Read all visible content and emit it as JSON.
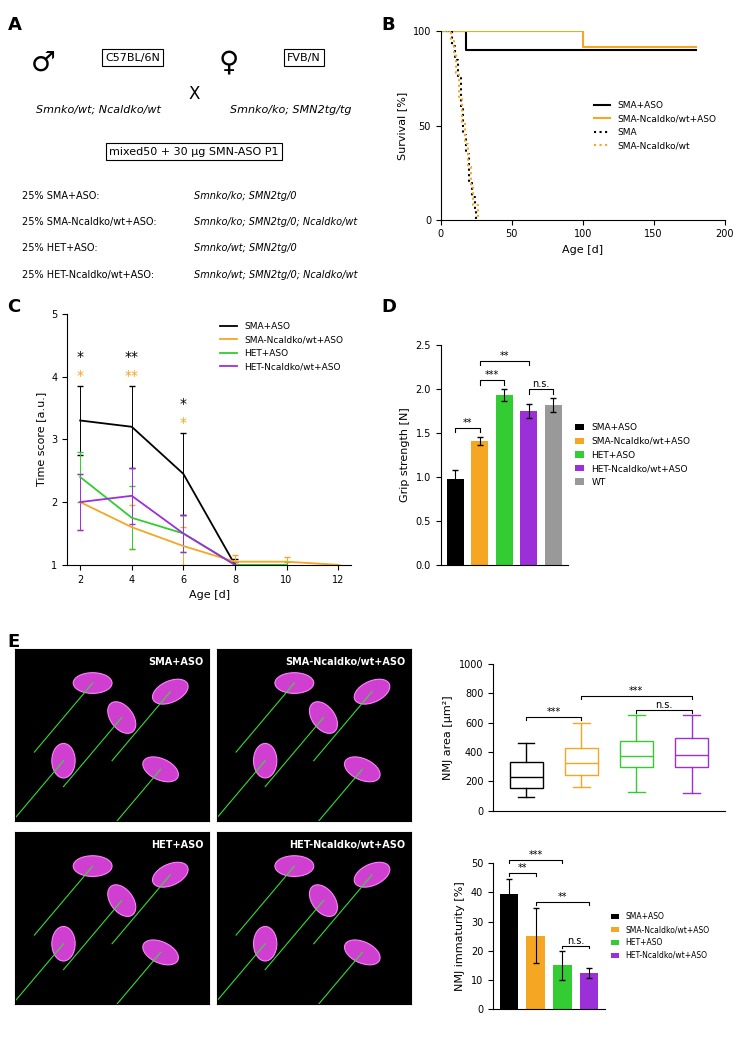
{
  "panel_labels": [
    "A",
    "B",
    "C",
    "D",
    "E"
  ],
  "diagram": {
    "male_symbol": "♂",
    "male_strain": "C57BL/6N",
    "male_genotype": "Smnko/wt; Ncaldko/wt",
    "cross": "X",
    "female_symbol": "♀",
    "female_strain": "FVB/N",
    "female_genotype": "Smnko/ko; SMN2tg/tg",
    "treatment": "mixed50 + 30 µg SMN-ASO P1",
    "offspring": [
      [
        "25% SMA+ASO:",
        "Smnko/ko; SMN2tg/0"
      ],
      [
        "25% SMA-Ncaldko/wt+ASO:",
        "Smnko/ko; SMN2tg/0; Ncaldko/wt"
      ],
      [
        "25% HET+ASO:",
        "Smnko/wt; SMN2tg/0"
      ],
      [
        "25% HET-Ncaldko/wt+ASO:",
        "Smnko/wt; SMN2tg/0; Ncaldko/wt"
      ]
    ]
  },
  "chart_data": [
    {
      "type": "step",
      "x_label": "Age [d]",
      "y_label": "Survival [%]",
      "xlim": [
        0,
        200
      ],
      "xticks": [
        0,
        50,
        100,
        150,
        200
      ],
      "ylim": [
        0,
        100
      ],
      "yticks": [
        0,
        50,
        100
      ],
      "legend": "center right",
      "series": [
        {
          "name": "SMA+ASO",
          "color": "#000000",
          "line_style": "solid",
          "x": [
            0,
            18,
            180
          ],
          "values": [
            100,
            90,
            90
          ]
        },
        {
          "name": "SMA-Ncaldko/wt+ASO",
          "color": "#f5a623",
          "line_style": "solid",
          "x": [
            0,
            100,
            180
          ],
          "values": [
            100,
            91.7,
            91.7
          ]
        },
        {
          "name": "SMA",
          "color": "#000000",
          "line_style": "dotted",
          "x": [
            0,
            8,
            10,
            12,
            14,
            16,
            18,
            20,
            22,
            24,
            25
          ],
          "values": [
            100,
            92,
            85,
            75,
            60,
            45,
            35,
            20,
            12,
            5,
            0
          ]
        },
        {
          "name": "SMA-Ncaldko/wt",
          "color": "#f5a623",
          "line_style": "dotted",
          "x": [
            0,
            7,
            9,
            11,
            13,
            15,
            17,
            19,
            21,
            23,
            26
          ],
          "values": [
            100,
            95,
            88,
            78,
            65,
            52,
            40,
            28,
            18,
            8,
            0
          ]
        }
      ]
    },
    {
      "type": "line",
      "x_label": "Age [d]",
      "y_label": "Time score [a.u.]",
      "x": [
        2,
        4,
        6,
        8,
        10,
        12
      ],
      "xlim": [
        1.5,
        12.5
      ],
      "xticks": [
        2,
        4,
        6,
        8,
        10,
        12
      ],
      "ylim": [
        1,
        5
      ],
      "yticks": [
        1,
        2,
        3,
        4,
        5
      ],
      "legend": "upper right",
      "series": [
        {
          "name": "SMA+ASO",
          "color": "#000000",
          "values": [
            3.3,
            3.2,
            2.45,
            1.0,
            null,
            null
          ],
          "errors": [
            0.55,
            0.65,
            0.65,
            0.1,
            null,
            null
          ]
        },
        {
          "name": "SMA-Ncaldko/wt+ASO",
          "color": "#f5a623",
          "values": [
            2.0,
            1.6,
            1.3,
            1.05,
            1.05,
            1.0
          ],
          "errors": [
            0.45,
            0.35,
            0.3,
            0.1,
            0.08,
            0.0
          ]
        },
        {
          "name": "HET+ASO",
          "color": "#33cc33",
          "values": [
            2.4,
            1.75,
            1.5,
            1.0,
            1.0,
            null
          ],
          "errors": [
            0.4,
            0.5,
            0.3,
            0.05,
            0.05,
            null
          ]
        },
        {
          "name": "HET-Ncaldko/wt+ASO",
          "color": "#9b30d9",
          "values": [
            2.0,
            2.1,
            1.5,
            1.0,
            null,
            null
          ],
          "errors": [
            0.45,
            0.45,
            0.3,
            0.05,
            null,
            null
          ]
        }
      ],
      "annotations": [
        {
          "x": 2,
          "text": "*",
          "color": "#f5a623"
        },
        {
          "x": 4,
          "text": "**",
          "color": "#f5a623"
        },
        {
          "x": 6,
          "text": "*",
          "color": "#f5a623"
        },
        {
          "x": 2,
          "text": "*",
          "color": "#000000"
        },
        {
          "x": 4,
          "text": "**",
          "color": "#000000"
        },
        {
          "x": 6,
          "text": "*",
          "color": "#000000"
        }
      ]
    },
    {
      "type": "bar",
      "y_label": "Grip strength [N]",
      "categories": [
        "SMA+ASO",
        "SMA-Ncaldko/wt+ASO",
        "HET+ASO",
        "HET-Ncaldko/wt+ASO",
        "WT"
      ],
      "values": [
        0.98,
        1.41,
        1.93,
        1.75,
        1.82
      ],
      "errors": [
        0.1,
        0.05,
        0.07,
        0.08,
        0.08
      ],
      "colors": [
        "#000000",
        "#f5a623",
        "#33cc33",
        "#9b30d9",
        "#999999"
      ],
      "ylim": [
        0.0,
        2.5
      ],
      "yticks": [
        0.0,
        0.5,
        1.0,
        1.5,
        2.0,
        2.5
      ],
      "tick_labels": "y",
      "legend": "right",
      "significance": [
        {
          "from": 0,
          "to": 1,
          "text": "**"
        },
        {
          "from": 1,
          "to": 2,
          "text": "***"
        },
        {
          "from": 1,
          "to": 3,
          "text": "**"
        },
        {
          "from": 3,
          "to": 4,
          "text": "n.s."
        }
      ]
    },
    {
      "type": "box",
      "y_label": "NMJ area [µm²]",
      "categories": [
        "SMA+ASO",
        "SMA-Ncaldko/wt+ASO",
        "HET+ASO",
        "HET-Ncaldko/wt+ASO"
      ],
      "colors": [
        "#000000",
        "#f5a623",
        "#33cc33",
        "#9b30d9"
      ],
      "boxes": [
        {
          "whisker_low": 90,
          "q1": 155,
          "median": 230,
          "q3": 330,
          "whisker_high": 460
        },
        {
          "whisker_low": 160,
          "q1": 245,
          "median": 325,
          "q3": 430,
          "whisker_high": 600
        },
        {
          "whisker_low": 130,
          "q1": 295,
          "median": 375,
          "q3": 475,
          "whisker_high": 650
        },
        {
          "whisker_low": 120,
          "q1": 300,
          "median": 380,
          "q3": 495,
          "whisker_high": 650
        }
      ],
      "ylim": [
        0,
        1000
      ],
      "yticks": [
        0,
        200,
        400,
        600,
        800,
        1000
      ],
      "tick_labels": "y",
      "significance": [
        {
          "from": 0,
          "to": 1,
          "text": "***"
        },
        {
          "from": 1,
          "to": 3,
          "text": "***"
        },
        {
          "from": 2,
          "to": 3,
          "text": "n.s."
        }
      ]
    },
    {
      "type": "bar",
      "y_label": "NMJ immaturity [%]",
      "categories": [
        "SMA+ASO",
        "SMA-Ncaldko/wt+ASO",
        "HET+ASO",
        "HET-Ncaldko/wt+ASO"
      ],
      "values": [
        39.5,
        25.2,
        15.0,
        12.5
      ],
      "errors": [
        5.0,
        9.3,
        4.8,
        1.8
      ],
      "colors": [
        "#000000",
        "#f5a623",
        "#33cc33",
        "#9b30d9"
      ],
      "ylim": [
        0,
        50
      ],
      "yticks": [
        0,
        10,
        20,
        30,
        40,
        50
      ],
      "tick_labels": "y",
      "legend": "right",
      "significance": [
        {
          "from": 0,
          "to": 1,
          "text": "**"
        },
        {
          "from": 0,
          "to": 2,
          "text": "***"
        },
        {
          "from": 1,
          "to": 3,
          "text": "**"
        },
        {
          "from": 2,
          "to": 3,
          "text": "n.s."
        }
      ]
    }
  ],
  "images": {
    "labels": [
      "SMA+ASO",
      "SMA-Ncaldko/wt+ASO",
      "HET+ASO",
      "HET-Ncaldko/wt+ASO"
    ]
  }
}
